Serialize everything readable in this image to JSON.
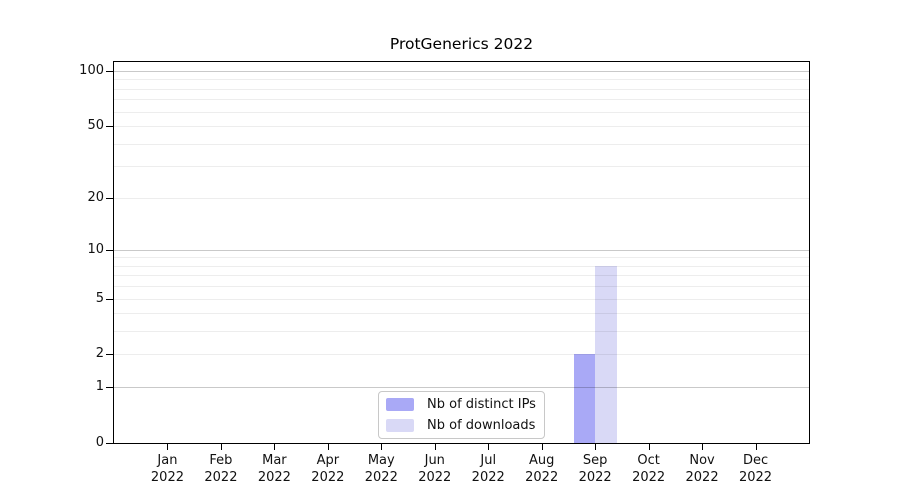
{
  "figure": {
    "background_color": "#ffffff"
  },
  "chart_data": {
    "type": "bar",
    "title": "ProtGenerics 2022",
    "categories": [
      "Jan",
      "Feb",
      "Mar",
      "Apr",
      "May",
      "Jun",
      "Jul",
      "Aug",
      "Sep",
      "Oct",
      "Nov",
      "Dec"
    ],
    "year": "2022",
    "x_tick_labels": [
      "Jan 2022",
      "Feb 2022",
      "Mar 2022",
      "Apr 2022",
      "May 2022",
      "Jun 2022",
      "Jul 2022",
      "Aug 2022",
      "Sep 2022",
      "Oct 2022",
      "Nov 2022",
      "Dec 2022"
    ],
    "series": [
      {
        "name": "Nb of distinct IPs",
        "color": "#a9a9f6",
        "values": [
          0,
          0,
          0,
          0,
          0,
          0,
          0,
          0,
          2,
          0,
          0,
          0
        ]
      },
      {
        "name": "Nb of downloads",
        "color": "#d9d9f6",
        "values": [
          0,
          0,
          0,
          0,
          0,
          0,
          0,
          0,
          8,
          0,
          0,
          0
        ]
      }
    ],
    "xlabel": "",
    "ylabel": "",
    "y_axis": {
      "scale": "log1p",
      "ticks": [
        0,
        1,
        2,
        5,
        10,
        20,
        50,
        100
      ],
      "max": 112
    },
    "grid": {
      "major_values": [
        1,
        10,
        100
      ],
      "minor_values": [
        2,
        3,
        4,
        5,
        6,
        7,
        8,
        9,
        20,
        30,
        40,
        50,
        60,
        70,
        80,
        90
      ],
      "major_color": "rgba(0,0,0,0.21)",
      "minor_color": "rgba(0,0,0,0.07)"
    },
    "legend": {
      "position": "lower center",
      "entries": [
        "Nb of distinct IPs",
        "Nb of downloads"
      ]
    },
    "axis_color": "#000000",
    "tick_label_color": "#111111"
  }
}
